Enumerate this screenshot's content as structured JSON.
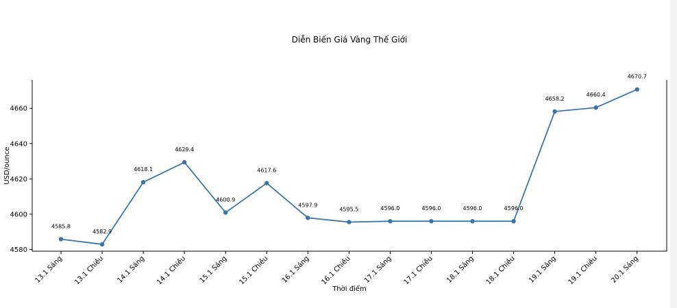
{
  "chart_data": {
    "type": "line",
    "title": "Diễn Biến Giá Vàng Thế Giới",
    "xlabel": "Thời điểm",
    "ylabel": "USD/ounce",
    "categories": [
      "13.1 Sáng",
      "13.1 Chiều",
      "14.1 Sáng",
      "14.1 Chiều",
      "15.1 Sáng",
      "15.1 Chiều",
      "16.1 Sáng",
      "16.1 Chiều",
      "17.1 Sáng",
      "17.1 Chiều",
      "18.1 Sáng",
      "18.1 Chiều",
      "19.1 Sáng",
      "19.1 Chiều",
      "20.1 Sáng"
    ],
    "values": [
      4585.8,
      4582.9,
      4618.1,
      4629.4,
      4600.9,
      4617.6,
      4597.9,
      4595.5,
      4596.0,
      4596.0,
      4596.0,
      4596.0,
      4658.2,
      4660.4,
      4670.7
    ],
    "data_labels": [
      "4585.8",
      "4582.9",
      "4618.1",
      "4629.4",
      "4600.9",
      "4617.6",
      "4597.9",
      "4595.5",
      "4596.0",
      "4596.0",
      "4596.0",
      "4596.0",
      "4658.2",
      "4660.4",
      "4670.7"
    ],
    "ylim": [
      4579,
      4676
    ],
    "yticks": [
      4580,
      4600,
      4620,
      4640,
      4660
    ],
    "grid": false,
    "legend": "none",
    "line_color": "#3a76aa"
  }
}
